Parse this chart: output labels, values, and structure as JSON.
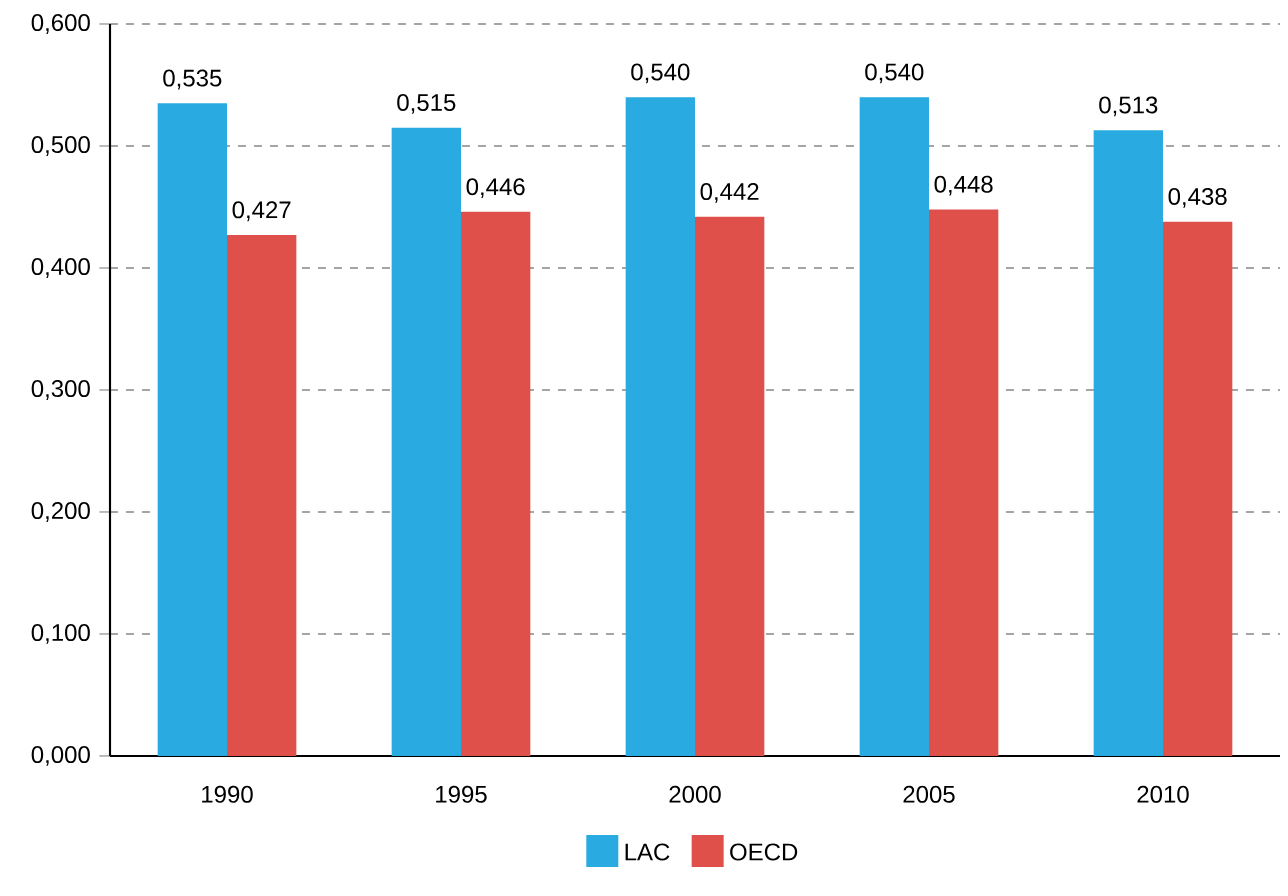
{
  "chart_data": {
    "type": "bar",
    "categories": [
      "1990",
      "1995",
      "2000",
      "2005",
      "2010"
    ],
    "series": [
      {
        "name": "LAC",
        "color": "#29abe2",
        "values": [
          0.535,
          0.515,
          0.54,
          0.54,
          0.513
        ],
        "value_labels": [
          "0,535",
          "0,515",
          "0,540",
          "0,540",
          "0,513"
        ]
      },
      {
        "name": "OECD",
        "color": "#e0504a",
        "values": [
          0.427,
          0.446,
          0.442,
          0.448,
          0.438
        ],
        "value_labels": [
          "0,427",
          "0,446",
          "0,442",
          "0,448",
          "0,438"
        ]
      }
    ],
    "ylim": [
      0,
      0.6
    ],
    "yticks": [
      {
        "value": 0,
        "label": "0,000"
      },
      {
        "value": 0.1,
        "label": "0,100"
      },
      {
        "value": 0.2,
        "label": "0,200"
      },
      {
        "value": 0.3,
        "label": "0,300"
      },
      {
        "value": 0.4,
        "label": "0,400"
      },
      {
        "value": 0.5,
        "label": "0,500"
      },
      {
        "value": 0.6,
        "label": "0,600"
      }
    ],
    "grid": "y",
    "legend": "bottom"
  }
}
